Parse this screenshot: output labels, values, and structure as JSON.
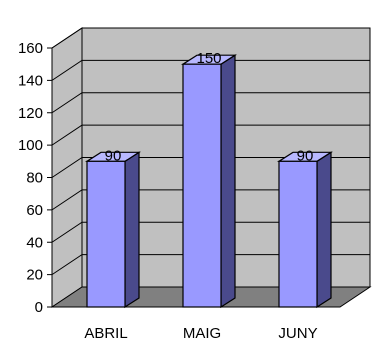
{
  "chart_data": {
    "type": "bar",
    "three_d": true,
    "categories": [
      "ABRIL",
      "MAIG",
      "JUNY"
    ],
    "values": [
      90,
      150,
      90
    ],
    "data_labels": [
      "90",
      "150",
      "90"
    ],
    "ylim": [
      0,
      160
    ],
    "yticks": [
      "0",
      "20",
      "40",
      "60",
      "80",
      "100",
      "120",
      "140",
      "160"
    ],
    "grid": true,
    "legend": "none",
    "colors": {
      "bar_front": "#9999ff",
      "bar_side": "#4a4a8c",
      "bar_top": "#b8b8ff",
      "wall": "#c0c0c0",
      "floor": "#808080",
      "gridline": "#000000"
    }
  }
}
